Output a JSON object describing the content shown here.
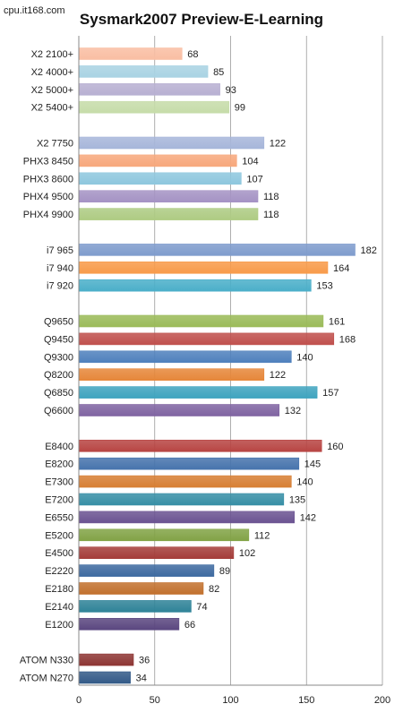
{
  "watermark": "cpu.it168.com",
  "chart_data": {
    "type": "bar",
    "orientation": "horizontal",
    "title": "Sysmark2007 Preview-E-Learning",
    "xlabel": "",
    "ylabel": "",
    "xlim": [
      0,
      200
    ],
    "x_ticks": [
      0,
      50,
      100,
      150,
      200
    ],
    "grid": true,
    "legend": "none",
    "groups": [
      {
        "items": [
          {
            "label": "X2 2100+",
            "value": 68,
            "color": "#f9bea3"
          },
          {
            "label": "X2 4000+",
            "value": 85,
            "color": "#a9d3e3"
          },
          {
            "label": "X2 5000+",
            "value": 93,
            "color": "#b8b0d2"
          },
          {
            "label": "X2 5400+",
            "value": 99,
            "color": "#c6dca9"
          }
        ]
      },
      {
        "items": [
          {
            "label": "X2 7750",
            "value": 122,
            "color": "#a7b6da"
          },
          {
            "label": "PHX3 8450",
            "value": 104,
            "color": "#f7a87c"
          },
          {
            "label": "PHX3 8600",
            "value": 107,
            "color": "#8ec7de"
          },
          {
            "label": "PHX4 9500",
            "value": 118,
            "color": "#a593c4"
          },
          {
            "label": "PHX4 9900",
            "value": 118,
            "color": "#aecb83"
          }
        ]
      },
      {
        "items": [
          {
            "label": "i7 965",
            "value": 182,
            "color": "#7f9ccd"
          },
          {
            "label": "i7 940",
            "value": 164,
            "color": "#f89b4a"
          },
          {
            "label": "i7 920",
            "value": 153,
            "color": "#4bafc9"
          }
        ]
      },
      {
        "items": [
          {
            "label": "Q9650",
            "value": 161,
            "color": "#9bbb59"
          },
          {
            "label": "Q9450",
            "value": 168,
            "color": "#c0504d"
          },
          {
            "label": "Q9300",
            "value": 140,
            "color": "#4f81bd"
          },
          {
            "label": "Q8200",
            "value": 122,
            "color": "#e6873a"
          },
          {
            "label": "Q6850",
            "value": 157,
            "color": "#3fa4bf"
          },
          {
            "label": "Q6600",
            "value": 132,
            "color": "#8064a2"
          }
        ]
      },
      {
        "items": [
          {
            "label": "E8400",
            "value": 160,
            "color": "#b84543"
          },
          {
            "label": "E8200",
            "value": 145,
            "color": "#4774ad"
          },
          {
            "label": "E7300",
            "value": 140,
            "color": "#d77f34"
          },
          {
            "label": "E7200",
            "value": 135,
            "color": "#378fa6"
          },
          {
            "label": "E6550",
            "value": 142,
            "color": "#6b5392"
          },
          {
            "label": "E5200",
            "value": 112,
            "color": "#82a346"
          },
          {
            "label": "E4500",
            "value": 102,
            "color": "#a53d3a"
          },
          {
            "label": "E2220",
            "value": 89,
            "color": "#3e6aa0"
          },
          {
            "label": "E2180",
            "value": 82,
            "color": "#c2712e"
          },
          {
            "label": "E2140",
            "value": 74,
            "color": "#2f8398"
          },
          {
            "label": "E1200",
            "value": 66,
            "color": "#5b4780"
          }
        ]
      },
      {
        "items": [
          {
            "label": "ATOM N330",
            "value": 36,
            "color": "#8e3634"
          },
          {
            "label": "ATOM N270",
            "value": 34,
            "color": "#335a88"
          }
        ]
      }
    ]
  }
}
